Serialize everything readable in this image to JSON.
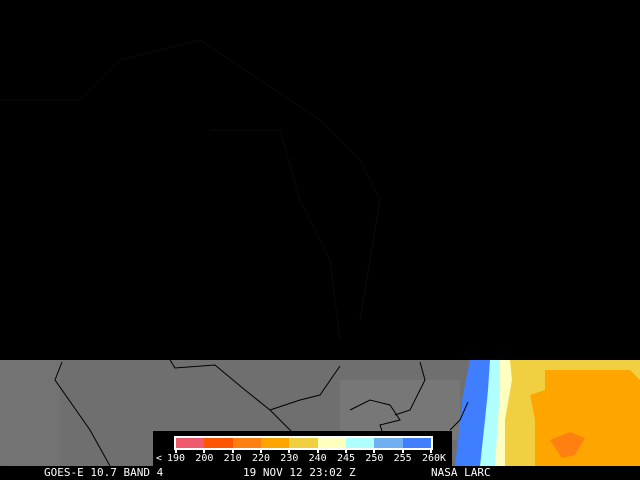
{
  "footer": {
    "satellite": "GOES-E 10.7 BAND 4",
    "datetime": "19 NOV 12 23:02 Z",
    "credit": "NASA LARC"
  },
  "legend": {
    "less_than": "<",
    "unit": "K",
    "ticks": [
      "190",
      "200",
      "210",
      "220",
      "230",
      "240",
      "245",
      "250",
      "255",
      "260"
    ],
    "colors": [
      "#f05a6e",
      "#ff5500",
      "#ff8010",
      "#ffa500",
      "#f0d040",
      "#ffffc0",
      "#b0ffff",
      "#70b0f0",
      "#4080ff"
    ]
  }
}
